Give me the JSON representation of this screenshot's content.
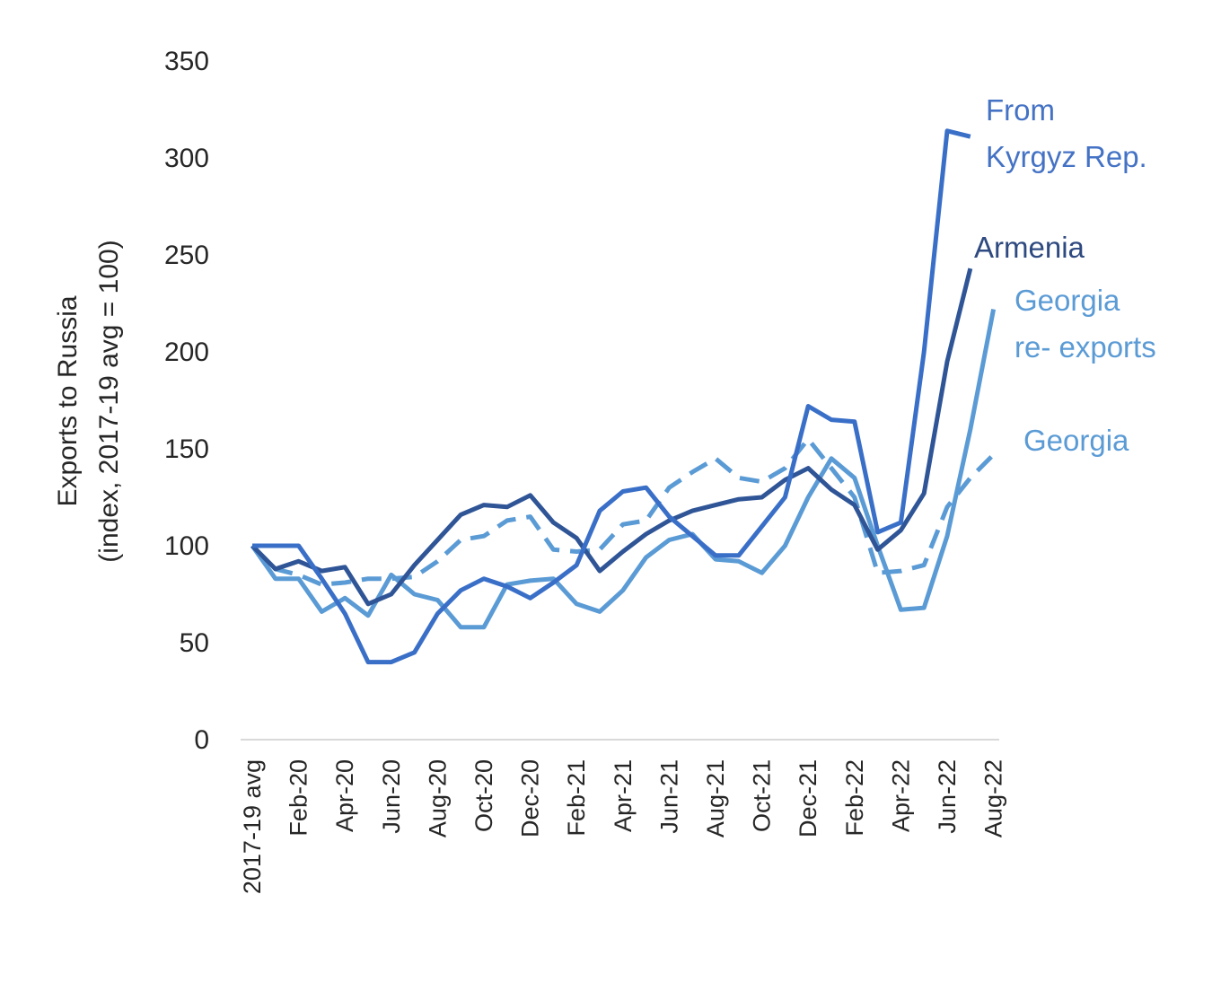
{
  "chart_data": {
    "type": "line",
    "ylabel_lines": [
      "Exports to Russia",
      "(index, 2017-19 avg = 100)"
    ],
    "ylim": [
      0,
      350
    ],
    "yticks": [
      0,
      50,
      100,
      150,
      200,
      250,
      300,
      350
    ],
    "grid": false,
    "x": [
      "2017-19 avg",
      "Jan-20",
      "Feb-20",
      "Mar-20",
      "Apr-20",
      "May-20",
      "Jun-20",
      "Jul-20",
      "Aug-20",
      "Sep-20",
      "Oct-20",
      "Nov-20",
      "Dec-20",
      "Jan-21",
      "Feb-21",
      "Mar-21",
      "Apr-21",
      "May-21",
      "Jun-21",
      "Jul-21",
      "Aug-21",
      "Sep-21",
      "Oct-21",
      "Nov-21",
      "Dec-21",
      "Jan-22",
      "Feb-22",
      "Mar-22",
      "Apr-22",
      "May-22",
      "Jun-22",
      "Jul-22",
      "Aug-22"
    ],
    "xtick_labels": [
      "2017-19 avg",
      "",
      "Feb-20",
      "",
      "Apr-20",
      "",
      "Jun-20",
      "",
      "Aug-20",
      "",
      "Oct-20",
      "",
      "Dec-20",
      "",
      "Feb-21",
      "",
      "Apr-21",
      "",
      "Jun-21",
      "",
      "Aug-21",
      "",
      "Oct-21",
      "",
      "Dec-21",
      "",
      "Feb-22",
      "",
      "Apr-22",
      "",
      "Jun-22",
      "",
      "Aug-22"
    ],
    "series": [
      {
        "name": "From Kyrgyz Rep.",
        "label_lines": [
          "From",
          "Kyrgyz Rep."
        ],
        "color": "#3A6FC8",
        "dash": false,
        "values": [
          100,
          100,
          100,
          83,
          65,
          40,
          40,
          45,
          65,
          77,
          83,
          79,
          73,
          81,
          90,
          118,
          128,
          130,
          115,
          105,
          95,
          95,
          110,
          125,
          172,
          165,
          164,
          107,
          112,
          200,
          314,
          311,
          null
        ]
      },
      {
        "name": "Armenia",
        "label_lines": [
          "Armenia"
        ],
        "color": "#2F5597",
        "dash": false,
        "values": [
          100,
          88,
          92,
          87,
          89,
          70,
          75,
          90,
          103,
          116,
          121,
          120,
          126,
          112,
          104,
          87,
          97,
          106,
          113,
          118,
          121,
          124,
          125,
          134,
          140,
          129,
          121,
          98,
          108,
          127,
          195,
          243,
          null
        ]
      },
      {
        "name": "Georgia re- exports",
        "label_lines": [
          "Georgia",
          "re- exports"
        ],
        "color": "#5B9BD5",
        "dash": false,
        "values": [
          100,
          83,
          83,
          66,
          73,
          64,
          85,
          75,
          72,
          58,
          58,
          80,
          82,
          83,
          70,
          66,
          77,
          94,
          103,
          106,
          93,
          92,
          86,
          100,
          125,
          145,
          135,
          100,
          67,
          68,
          105,
          160,
          222
        ]
      },
      {
        "name": "Georgia",
        "label_lines": [
          "Georgia"
        ],
        "color": "#5B9BD5",
        "dash": true,
        "values": [
          100,
          88,
          85,
          80,
          81,
          83,
          83,
          84,
          92,
          103,
          105,
          113,
          115,
          98,
          97,
          98,
          111,
          113,
          130,
          138,
          145,
          135,
          133,
          140,
          155,
          140,
          125,
          86,
          87,
          90,
          120,
          135,
          147
        ]
      }
    ]
  }
}
